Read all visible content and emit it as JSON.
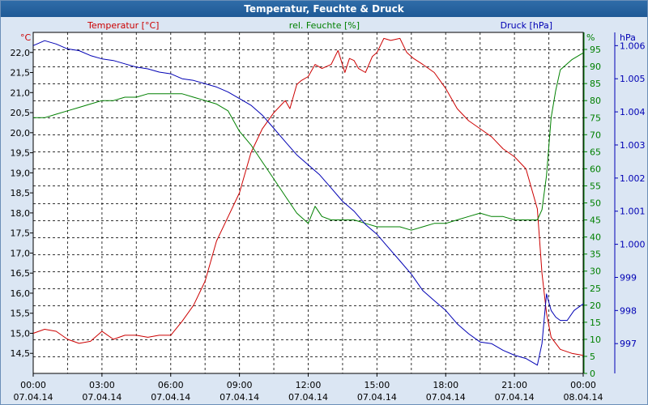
{
  "window": {
    "title": "Temperatur, Feuchte & Druck"
  },
  "colors": {
    "temperature": "#cc0000",
    "humidity": "#008000",
    "pressure": "#0000b4",
    "grid": "#000000",
    "plot_bg": "#ffffff",
    "frame_bg": "#dbe6f3"
  },
  "chart_data": {
    "type": "line",
    "title": "Temperatur, Feuchte & Druck",
    "grid": true,
    "x_axis": {
      "labels": [
        {
          "time": "00:00",
          "date": "07.04.14"
        },
        {
          "time": "03:00",
          "date": "07.04.14"
        },
        {
          "time": "06:00",
          "date": "07.04.14"
        },
        {
          "time": "09:00",
          "date": "07.04.14"
        },
        {
          "time": "12:00",
          "date": "07.04.14"
        },
        {
          "time": "15:00",
          "date": "07.04.14"
        },
        {
          "time": "18:00",
          "date": "07.04.14"
        },
        {
          "time": "21:00",
          "date": "07.04.14"
        },
        {
          "time": "00:00",
          "date": "08.04.14"
        }
      ],
      "range_hours": [
        0,
        24
      ]
    },
    "axes": {
      "temperature": {
        "label": "Temperatur [°C]",
        "unit": "°C",
        "range": [
          14.0,
          22.5
        ],
        "ticks": [
          "14,5",
          "15,0",
          "15,5",
          "16,0",
          "16,5",
          "17,0",
          "17,5",
          "18,0",
          "18,5",
          "19,0",
          "19,5",
          "20,0",
          "20,5",
          "21,0",
          "21,5",
          "22,0"
        ]
      },
      "humidity": {
        "label": "rel. Feuchte [%]",
        "unit": "%",
        "range": [
          0,
          100
        ],
        "ticks": [
          "0",
          "5",
          "10",
          "15",
          "20",
          "25",
          "30",
          "35",
          "40",
          "45",
          "50",
          "55",
          "60",
          "65",
          "70",
          "75",
          "80",
          "85",
          "90",
          "95"
        ]
      },
      "pressure": {
        "label": "Druck [hPa]",
        "unit": "hPa",
        "range": [
          996.1,
          1006.4
        ],
        "ticks": [
          "997",
          "998",
          "999",
          "1.000",
          "1.001",
          "1.002",
          "1.003",
          "1.004",
          "1.005",
          "1.006"
        ]
      }
    },
    "series": [
      {
        "name": "Temperatur [°C]",
        "axis": "temperature",
        "x": [
          0,
          0.5,
          1,
          1.5,
          2,
          2.5,
          3,
          3.5,
          4,
          4.5,
          5,
          5.5,
          6,
          6.5,
          7,
          7.5,
          8,
          8.5,
          9,
          9.5,
          10,
          10.5,
          11,
          11.2,
          11.5,
          11.7,
          12,
          12.3,
          12.6,
          13,
          13.3,
          13.6,
          13.8,
          14,
          14.2,
          14.5,
          14.8,
          15,
          15.3,
          15.6,
          16,
          16.3,
          16.6,
          17,
          17.5,
          18,
          18.5,
          19,
          19.5,
          20,
          20.5,
          21,
          21.5,
          22,
          22.2,
          22.4,
          22.6,
          22.8,
          23,
          23.5,
          24
        ],
        "values": [
          15.0,
          15.1,
          15.05,
          14.85,
          14.75,
          14.8,
          15.05,
          14.85,
          14.95,
          14.95,
          14.9,
          14.95,
          14.95,
          15.3,
          15.7,
          16.3,
          17.3,
          17.9,
          18.5,
          19.5,
          20.1,
          20.5,
          20.8,
          20.6,
          21.2,
          21.3,
          21.4,
          21.7,
          21.6,
          21.7,
          22.05,
          21.5,
          21.85,
          21.8,
          21.6,
          21.5,
          21.9,
          22.0,
          22.35,
          22.3,
          22.35,
          22.0,
          21.85,
          21.7,
          21.5,
          21.1,
          20.6,
          20.3,
          20.1,
          19.9,
          19.6,
          19.4,
          19.1,
          18.1,
          16.5,
          15.5,
          14.9,
          14.75,
          14.6,
          14.5,
          14.45
        ]
      },
      {
        "name": "rel. Feuchte [%]",
        "axis": "humidity",
        "x": [
          0,
          0.5,
          1,
          1.5,
          2,
          2.5,
          3,
          3.5,
          4,
          4.5,
          5,
          5.5,
          6,
          6.5,
          7,
          7.5,
          8,
          8.5,
          9,
          9.5,
          10,
          10.5,
          11,
          11.5,
          12,
          12.3,
          12.6,
          13,
          13.5,
          14,
          14.5,
          15,
          15.5,
          16,
          16.5,
          17,
          17.5,
          18,
          18.5,
          19,
          19.5,
          20,
          20.5,
          21,
          21.5,
          22,
          22.2,
          22.4,
          22.6,
          22.8,
          23,
          23.5,
          24
        ],
        "values": [
          75,
          75,
          76,
          77,
          78,
          79,
          80,
          80,
          81,
          81,
          82,
          82,
          82,
          82,
          81,
          80,
          79,
          77,
          71,
          67,
          62,
          57,
          52,
          47,
          44,
          49,
          46,
          45,
          45,
          45,
          44,
          43,
          43,
          43,
          42,
          43,
          44,
          44,
          45,
          46,
          47,
          46,
          46,
          45,
          45,
          45,
          48,
          58,
          75,
          83,
          89,
          92,
          94
        ]
      },
      {
        "name": "Druck [hPa]",
        "axis": "pressure",
        "x": [
          0,
          0.5,
          1,
          1.5,
          2,
          2.5,
          3,
          3.5,
          4,
          4.5,
          5,
          5.5,
          6,
          6.5,
          7,
          7.5,
          8,
          8.5,
          9,
          9.5,
          10,
          10.5,
          11,
          11.5,
          12,
          12.5,
          13,
          13.5,
          14,
          14.5,
          15,
          15.5,
          16,
          16.5,
          17,
          17.5,
          18,
          18.5,
          19,
          19.5,
          20,
          20.5,
          21,
          21.5,
          22,
          22.2,
          22.4,
          22.6,
          22.8,
          23,
          23.3,
          23.6,
          24
        ],
        "values": [
          1006.0,
          1006.15,
          1006.05,
          1005.9,
          1005.85,
          1005.7,
          1005.6,
          1005.55,
          1005.45,
          1005.35,
          1005.3,
          1005.2,
          1005.15,
          1005.0,
          1004.95,
          1004.85,
          1004.75,
          1004.6,
          1004.4,
          1004.2,
          1003.9,
          1003.5,
          1003.1,
          1002.7,
          1002.4,
          1002.1,
          1001.7,
          1001.3,
          1001.0,
          1000.6,
          1000.3,
          999.9,
          999.5,
          999.1,
          998.6,
          998.3,
          998.0,
          997.6,
          997.3,
          997.05,
          997.0,
          996.8,
          996.65,
          996.55,
          996.35,
          997.0,
          998.5,
          998.0,
          997.8,
          997.7,
          997.7,
          998.0,
          998.2
        ]
      }
    ]
  }
}
